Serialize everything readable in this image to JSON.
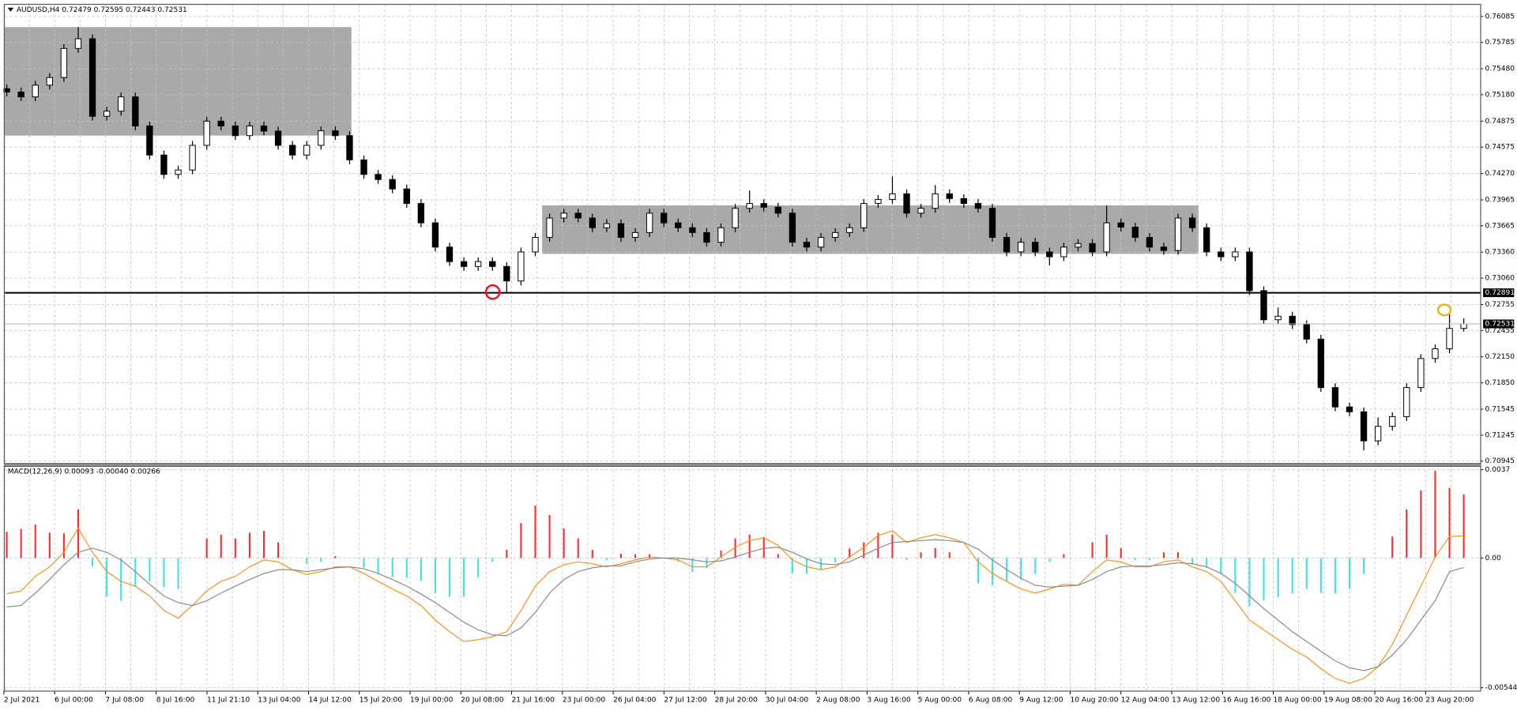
{
  "chart_data": [
    {
      "type": "candlestick",
      "title": "AUDUSD,H4  0.72479 0.72595 0.72443 0.72531",
      "ohlc": [
        [
          0.7525,
          0.753,
          0.75161,
          0.75211
        ],
        [
          0.75211,
          0.75261,
          0.75105,
          0.75155
        ],
        [
          0.75155,
          0.7534,
          0.75105,
          0.7529
        ],
        [
          0.7529,
          0.75429,
          0.7524,
          0.75379
        ],
        [
          0.75379,
          0.75765,
          0.75329,
          0.75715
        ],
        [
          0.75715,
          0.75962,
          0.75665,
          0.75827
        ],
        [
          0.75827,
          0.75877,
          0.74881,
          0.74931
        ],
        [
          0.74931,
          0.7504,
          0.74881,
          0.7499
        ],
        [
          0.7499,
          0.75205,
          0.7494,
          0.75155
        ],
        [
          0.75155,
          0.75205,
          0.74769,
          0.74819
        ],
        [
          0.74819,
          0.74869,
          0.74433,
          0.74483
        ],
        [
          0.74483,
          0.74533,
          0.74209,
          0.74259
        ],
        [
          0.74259,
          0.7436,
          0.74209,
          0.7431
        ],
        [
          0.7431,
          0.74645,
          0.7426,
          0.74595
        ],
        [
          0.74595,
          0.74925,
          0.74545,
          0.74875
        ],
        [
          0.74875,
          0.74925,
          0.74769,
          0.74819
        ],
        [
          0.74819,
          0.74869,
          0.74657,
          0.74707
        ],
        [
          0.74707,
          0.74869,
          0.74657,
          0.74819
        ],
        [
          0.74819,
          0.74869,
          0.7471,
          0.7476
        ],
        [
          0.7476,
          0.7481,
          0.74545,
          0.74595
        ],
        [
          0.74595,
          0.74645,
          0.74433,
          0.74483
        ],
        [
          0.74483,
          0.74645,
          0.74433,
          0.74595
        ],
        [
          0.74595,
          0.74813,
          0.74545,
          0.74763
        ],
        [
          0.74763,
          0.74813,
          0.74657,
          0.74707
        ],
        [
          0.74707,
          0.74757,
          0.74377,
          0.74427
        ],
        [
          0.74427,
          0.74477,
          0.74209,
          0.74259
        ],
        [
          0.74259,
          0.74309,
          0.7415,
          0.742
        ],
        [
          0.742,
          0.7425,
          0.74041,
          0.74091
        ],
        [
          0.74091,
          0.74141,
          0.73873,
          0.73923
        ],
        [
          0.73923,
          0.73973,
          0.73649,
          0.73699
        ],
        [
          0.73699,
          0.73749,
          0.73369,
          0.73419
        ],
        [
          0.73419,
          0.73469,
          0.73201,
          0.73251
        ],
        [
          0.73251,
          0.73301,
          0.73145,
          0.73195
        ],
        [
          0.73195,
          0.73301,
          0.73145,
          0.73251
        ],
        [
          0.73251,
          0.73301,
          0.73145,
          0.73195
        ],
        [
          0.73195,
          0.73245,
          0.72891,
          0.73027
        ],
        [
          0.73027,
          0.73413,
          0.72977,
          0.73363
        ],
        [
          0.73363,
          0.73581,
          0.73313,
          0.73531
        ],
        [
          0.73531,
          0.73805,
          0.73481,
          0.73755
        ],
        [
          0.73755,
          0.73861,
          0.73705,
          0.73811
        ],
        [
          0.73811,
          0.73861,
          0.73705,
          0.73755
        ],
        [
          0.73755,
          0.73805,
          0.73593,
          0.73643
        ],
        [
          0.73643,
          0.7374,
          0.73593,
          0.7369
        ],
        [
          0.7369,
          0.7374,
          0.73481,
          0.73531
        ],
        [
          0.73531,
          0.73637,
          0.73481,
          0.73587
        ],
        [
          0.73587,
          0.73861,
          0.73537,
          0.73811
        ],
        [
          0.73811,
          0.73861,
          0.73649,
          0.73699
        ],
        [
          0.73699,
          0.73749,
          0.73593,
          0.73643
        ],
        [
          0.73643,
          0.73693,
          0.73537,
          0.73587
        ],
        [
          0.73587,
          0.73637,
          0.73425,
          0.73475
        ],
        [
          0.73475,
          0.73693,
          0.73425,
          0.73643
        ],
        [
          0.73643,
          0.73917,
          0.73593,
          0.73867
        ],
        [
          0.73867,
          0.74073,
          0.73817,
          0.73923
        ],
        [
          0.73923,
          0.73973,
          0.7383,
          0.7388
        ],
        [
          0.7388,
          0.7393,
          0.73761,
          0.73811
        ],
        [
          0.73811,
          0.73861,
          0.73425,
          0.73475
        ],
        [
          0.73475,
          0.73525,
          0.73369,
          0.73419
        ],
        [
          0.73419,
          0.73581,
          0.73369,
          0.73531
        ],
        [
          0.73531,
          0.73637,
          0.73481,
          0.73587
        ],
        [
          0.73587,
          0.73693,
          0.73537,
          0.73643
        ],
        [
          0.73643,
          0.73973,
          0.73593,
          0.73923
        ],
        [
          0.73923,
          0.7402,
          0.73873,
          0.7397
        ],
        [
          0.7397,
          0.74235,
          0.7392,
          0.74035
        ],
        [
          0.74035,
          0.74085,
          0.73761,
          0.73811
        ],
        [
          0.73811,
          0.73917,
          0.73761,
          0.73867
        ],
        [
          0.73867,
          0.74135,
          0.73817,
          0.74035
        ],
        [
          0.74035,
          0.74085,
          0.7393,
          0.7398
        ],
        [
          0.7398,
          0.7403,
          0.73873,
          0.73923
        ],
        [
          0.73923,
          0.73973,
          0.73817,
          0.73867
        ],
        [
          0.73867,
          0.73917,
          0.73481,
          0.73531
        ],
        [
          0.73531,
          0.73581,
          0.73313,
          0.73363
        ],
        [
          0.73363,
          0.73525,
          0.73313,
          0.73475
        ],
        [
          0.73475,
          0.73525,
          0.73313,
          0.73363
        ],
        [
          0.73363,
          0.73413,
          0.73207,
          0.73307
        ],
        [
          0.73307,
          0.73469,
          0.73257,
          0.73419
        ],
        [
          0.73419,
          0.7351,
          0.73369,
          0.7346
        ],
        [
          0.7346,
          0.7351,
          0.73313,
          0.73363
        ],
        [
          0.73363,
          0.73899,
          0.73313,
          0.73699
        ],
        [
          0.73699,
          0.73749,
          0.736,
          0.7365
        ],
        [
          0.7365,
          0.737,
          0.73481,
          0.73531
        ],
        [
          0.73531,
          0.73581,
          0.73369,
          0.73419
        ],
        [
          0.73419,
          0.73469,
          0.7333,
          0.7338
        ],
        [
          0.7338,
          0.73805,
          0.7333,
          0.73755
        ],
        [
          0.73755,
          0.73805,
          0.73593,
          0.73643
        ],
        [
          0.73643,
          0.73693,
          0.73313,
          0.73363
        ],
        [
          0.73363,
          0.73413,
          0.73257,
          0.73307
        ],
        [
          0.73307,
          0.73413,
          0.73257,
          0.73363
        ],
        [
          0.73363,
          0.73413,
          0.72865,
          0.72915
        ],
        [
          0.72915,
          0.72965,
          0.72529,
          0.72579
        ],
        [
          0.72579,
          0.7272,
          0.72529,
          0.7262
        ],
        [
          0.7262,
          0.7267,
          0.72473,
          0.72523
        ],
        [
          0.72523,
          0.72573,
          0.72305,
          0.72355
        ],
        [
          0.72355,
          0.72405,
          0.71745,
          0.71795
        ],
        [
          0.71795,
          0.71845,
          0.71521,
          0.71571
        ],
        [
          0.71571,
          0.71621,
          0.71465,
          0.71515
        ],
        [
          0.71515,
          0.71565,
          0.71068,
          0.71179
        ],
        [
          0.71179,
          0.7145,
          0.71129,
          0.71347
        ],
        [
          0.71347,
          0.71509,
          0.71297,
          0.71459
        ],
        [
          0.71459,
          0.71845,
          0.71409,
          0.71795
        ],
        [
          0.71795,
          0.72181,
          0.71745,
          0.72131
        ],
        [
          0.72131,
          0.72293,
          0.72081,
          0.72243
        ],
        [
          0.72243,
          0.7265,
          0.72193,
          0.72479
        ],
        [
          0.72479,
          0.72595,
          0.72443,
          0.72531
        ]
      ],
      "up_color": "#ffffff",
      "down_color": "#000000",
      "ylim": [
        0.70923,
        0.76219
      ],
      "yticks": [
        0.76085,
        0.75785,
        {
          "value": 0.7548,
          "label": "0.75480"
        },
        {
          "value": 0.7518,
          "label": "0.75180"
        },
        0.74875,
        0.74575,
        {
          "value": 0.7427,
          "label": "0.74270"
        },
        0.73965,
        0.73665,
        {
          "value": 0.7336,
          "label": "0.73360"
        },
        {
          "value": 0.7306,
          "label": "0.73060"
        },
        0.72755,
        0.72455,
        {
          "value": 0.7215,
          "label": "0.72150"
        },
        {
          "value": 0.7185,
          "label": "0.71850"
        },
        0.71545,
        0.71245,
        0.70945
      ],
      "grid": true,
      "levels": [
        0.72891
      ],
      "bid": 0.72531,
      "zones": [
        {
          "top": 0.75962,
          "bottom": 0.74708,
          "color": "#a9a9a9"
        },
        {
          "top": 0.73901,
          "bottom": 0.73341,
          "color": "#a9a9a9"
        }
      ],
      "xtick_labels": [
        "2 Jul 2021",
        "6 Jul 00:00",
        "7 Jul 08:00",
        "8 Jul 16:00",
        "11 Jul 21:10",
        "13 Jul 04:00",
        "14 Jul 12:00",
        "15 Jul 20:00",
        "19 Jul 00:00",
        "20 Jul 08:00",
        "21 Jul 16:00",
        "23 Jul 00:00",
        "26 Jul 04:00",
        "27 Jul 12:00",
        "28 Jul 20:00",
        "30 Jul 04:00",
        "2 Aug 08:00",
        "3 Aug 16:00",
        "5 Aug 00:00",
        "6 Aug 08:00",
        "9 Aug 12:00",
        "10 Aug 20:00",
        "12 Aug 04:00",
        "13 Aug 12:00",
        "16 Aug 16:00",
        "18 Aug 00:00",
        "19 Aug 08:00",
        "20 Aug 16:00",
        "23 Aug 20:00"
      ]
    },
    {
      "type": "macd",
      "title": "MACD(12,26,9) 0.00093 -0.00040 0.00266",
      "ylim": [
        -0.00556,
        0.00386
      ],
      "yticks": [
        0.0037,
        {
          "value": 0,
          "label": "0.00"
        },
        -0.00544
      ],
      "histogram": {
        "up_color": "#ff2a2a",
        "down_color": "#3fe0ea",
        "values": [
          0.0011,
          0.00122,
          0.0014,
          0.00106,
          0.00104,
          0.00204,
          -0.00034,
          -0.00162,
          -0.0018,
          -0.00122,
          -0.00098,
          -0.00122,
          -0.0013,
          0,
          0.00082,
          0.00098,
          0.00082,
          0.00106,
          0.00114,
          0.00066,
          0,
          -0.00024,
          -0.00016,
          8e-05,
          0,
          -0.0004,
          -0.00066,
          -0.0008,
          -0.00082,
          -0.00096,
          -0.00146,
          -0.00162,
          -0.00162,
          -0.00082,
          -0.00016,
          0.00034,
          0.00146,
          0.0022,
          0.0018,
          0.00124,
          0.00082,
          0.00034,
          -8e-05,
          0.00018,
          0.00016,
          0.00016,
          0,
          -0.00016,
          -0.00058,
          -0.00042,
          0.00032,
          0.00082,
          0.00098,
          0.00088,
          0.00016,
          -0.00064,
          -0.00066,
          -0.0005,
          -0.00018,
          0.0004,
          0.00066,
          0.00106,
          0.00098,
          -8e-05,
          0.00024,
          0.00042,
          0.00024,
          0,
          -0.00106,
          -0.00114,
          -0.00098,
          -0.0009,
          -0.00066,
          -0.00016,
          0.00016,
          0,
          0.00066,
          0.00098,
          0.00042,
          -8e-05,
          -8e-05,
          0.00024,
          0.00024,
          -0.00026,
          -0.0004,
          -0.00066,
          -0.00146,
          -0.00202,
          -0.00178,
          -0.00164,
          -0.00148,
          -0.0013,
          -0.00146,
          -0.00148,
          -0.0013,
          -0.00066,
          0,
          0.0009,
          0.00204,
          0.00284,
          0.00366,
          0.00294,
          0.00266
        ]
      },
      "series": [
        {
          "color": "#f7931e",
          "values": [
            -0.0015,
            -0.00138,
            -0.00077,
            -0.00037,
            0.00024,
            0.00126,
            0.00024,
            -0.00057,
            -0.00098,
            -0.00118,
            -0.00159,
            -0.0022,
            -0.00252,
            -0.00199,
            -0.00138,
            -0.00098,
            -0.00077,
            -0.00037,
            -8e-05,
            -0.00016,
            -0.00049,
            -0.00069,
            -0.00057,
            -0.00037,
            -0.00037,
            -0.00065,
            -0.00098,
            -0.0013,
            -0.00159,
            -0.00199,
            -0.0026,
            -0.00309,
            -0.0035,
            -0.00342,
            -0.0033,
            -0.00309,
            -0.0022,
            -0.00118,
            -0.00057,
            -0.00028,
            -0.00016,
            -0.00024,
            -0.00037,
            -0.00024,
            -8e-05,
            4e-05,
            0,
            -8e-05,
            -0.00037,
            -0.00037,
            4e-05,
            0.00045,
            0.00073,
            0.00085,
            0.00053,
            -8e-05,
            -0.00037,
            -0.00049,
            -0.00037,
            4e-05,
            0.00045,
            0.00094,
            0.00114,
            0.00065,
            0.00085,
            0.00098,
            0.00085,
            0.00065,
            -0.00016,
            -0.00065,
            -0.00098,
            -0.0013,
            -0.00147,
            -0.0013,
            -0.0011,
            -0.00114,
            -0.00057,
            -8e-05,
            -0.00016,
            -0.00037,
            -0.00037,
            -0.00016,
            -8e-05,
            -0.00037,
            -0.00057,
            -0.00098,
            -0.00179,
            -0.0026,
            -0.00301,
            -0.00342,
            -0.00383,
            -0.00415,
            -0.00464,
            -0.00505,
            -0.00525,
            -0.00505,
            -0.00456,
            -0.00362,
            -0.0024,
            -0.00118,
            4e-05,
            0.0009,
            0.00093
          ]
        },
        {
          "color": "#8c8c8c",
          "values": [
            -0.00205,
            -0.00199,
            -0.00147,
            -0.0009,
            -0.00028,
            0.00024,
            0.00041,
            0.00024,
            -8e-05,
            -0.00057,
            -0.0011,
            -0.00159,
            -0.00187,
            -0.00199,
            -0.00179,
            -0.00147,
            -0.00118,
            -0.0009,
            -0.00065,
            -0.00049,
            -0.00049,
            -0.00057,
            -0.00049,
            -0.00041,
            -0.00037,
            -0.00045,
            -0.00065,
            -0.0009,
            -0.00118,
            -0.00151,
            -0.00187,
            -0.00228,
            -0.00269,
            -0.00301,
            -0.00322,
            -0.00326,
            -0.00293,
            -0.00228,
            -0.00147,
            -0.0009,
            -0.00057,
            -0.00041,
            -0.00033,
            -0.00033,
            -0.00016,
            -4e-05,
            0,
            0,
            -8e-05,
            -0.00016,
            -0.00012,
            4e-05,
            0.00024,
            0.00041,
            0.00045,
            0.00024,
            -4e-05,
            -0.00024,
            -0.00028,
            -0.00016,
            0.00012,
            0.00041,
            0.00065,
            0.00069,
            0.00073,
            0.00077,
            0.00073,
            0.00065,
            0.00037,
            -8e-05,
            -0.00049,
            -0.00085,
            -0.00114,
            -0.00122,
            -0.00118,
            -0.00114,
            -0.0009,
            -0.00057,
            -0.00037,
            -0.00033,
            -0.00033,
            -0.00028,
            -0.0002,
            -0.00024,
            -0.00037,
            -0.00065,
            -0.00106,
            -0.00159,
            -0.00212,
            -0.0026,
            -0.00309,
            -0.0035,
            -0.00391,
            -0.00431,
            -0.0046,
            -0.00472,
            -0.00456,
            -0.00407,
            -0.00342,
            -0.0026,
            -0.00179,
            -0.00057,
            -0.0004
          ]
        }
      ]
    }
  ]
}
